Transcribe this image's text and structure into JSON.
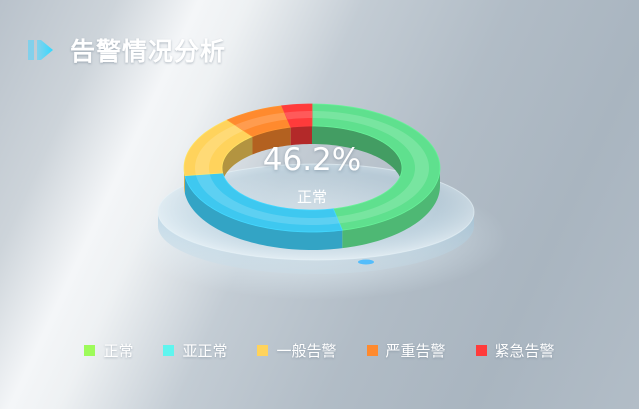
{
  "header": {
    "title": "告警情况分析"
  },
  "center": {
    "value": "46.2%",
    "label": "正常"
  },
  "chart_data": {
    "type": "pie",
    "style": "3d-donut",
    "categories": [
      "正常",
      "亚正常",
      "一般告警",
      "严重告警",
      "紧急告警"
    ],
    "values": [
      46.2,
      26.9,
      15.4,
      7.7,
      3.8
    ],
    "colors": [
      "#5fe08e",
      "#3ec8f0",
      "#ffd35c",
      "#ff8a2e",
      "#ff3b3b"
    ],
    "legend_position": "bottom",
    "center_text": "46.2%",
    "center_subtext": "正常"
  },
  "legend": {
    "items": [
      {
        "label": "正常",
        "color": "#9dfb5a"
      },
      {
        "label": "亚正常",
        "color": "#5ff5ef"
      },
      {
        "label": "一般告警",
        "color": "#ffd35c"
      },
      {
        "label": "严重告警",
        "color": "#ff8a2e"
      },
      {
        "label": "紧急告警",
        "color": "#ff3b3b"
      }
    ]
  },
  "icons": {
    "header": "chevron-right-double-icon"
  }
}
